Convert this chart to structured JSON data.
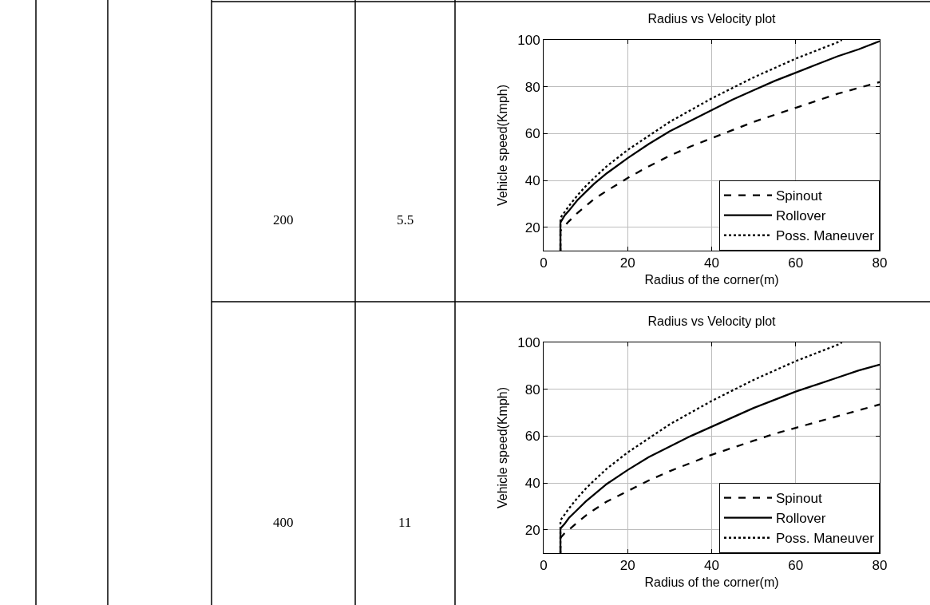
{
  "chart_data": [
    {
      "type": "line",
      "title": "Radius vs Velocity plot",
      "xlabel": "Radius of the corner(m)",
      "ylabel": "Vehicle speed(Kmph)",
      "annotations": [
        "200",
        "5.5"
      ],
      "xlim": [
        0,
        80
      ],
      "ylim": [
        10,
        100
      ],
      "xticks": [
        0,
        20,
        40,
        60,
        80
      ],
      "yticks": [
        20,
        40,
        60,
        80,
        100
      ],
      "grid": true,
      "legend": "bottom right",
      "marker": "none",
      "series": [
        {
          "name": "Spinout",
          "color": "#000000",
          "line_style": "dashed",
          "x": [
            4,
            4,
            5,
            6,
            8,
            10,
            12,
            15,
            20,
            25,
            30,
            35,
            40,
            45,
            50,
            55,
            60,
            65,
            70,
            75,
            80
          ],
          "values": [
            10,
            18.5,
            20.5,
            22.5,
            26,
            29,
            32,
            35.5,
            41,
            46,
            50.5,
            54.5,
            58,
            61.5,
            65,
            68,
            71,
            74,
            77,
            79.5,
            82
          ]
        },
        {
          "name": "Rollover",
          "color": "#000000",
          "line_style": "solid",
          "x": [
            4,
            4,
            5,
            6,
            8,
            10,
            12,
            15,
            20,
            25,
            30,
            35,
            40,
            45,
            50,
            55,
            60,
            65,
            70,
            75,
            80
          ],
          "values": [
            10,
            22,
            25,
            27,
            31.5,
            35,
            38.5,
            43,
            49.5,
            55.5,
            61,
            65.5,
            70,
            74.5,
            78.5,
            82.5,
            86,
            89.5,
            93,
            96,
            99.5
          ]
        },
        {
          "name": "Poss. Maneuver",
          "color": "#000000",
          "line_style": "dotted",
          "x": [
            4,
            4,
            5,
            6,
            8,
            10,
            12,
            15,
            20,
            25,
            30,
            35,
            40,
            45,
            50,
            55,
            60,
            65,
            70,
            71
          ],
          "values": [
            10,
            24,
            26.5,
            29,
            33.5,
            37.5,
            41,
            46,
            53,
            59,
            65,
            70,
            75,
            79.5,
            84,
            88,
            92,
            95.5,
            99,
            100
          ]
        }
      ]
    },
    {
      "type": "line",
      "title": "Radius vs Velocity plot",
      "xlabel": "Radius of the corner(m)",
      "ylabel": "Vehicle speed(Kmph)",
      "annotations": [
        "400",
        "11"
      ],
      "xlim": [
        0,
        80
      ],
      "ylim": [
        10,
        100
      ],
      "xticks": [
        0,
        20,
        40,
        60,
        80
      ],
      "yticks": [
        20,
        40,
        60,
        80,
        100
      ],
      "grid": true,
      "legend": "bottom right",
      "marker": "none",
      "series": [
        {
          "name": "Spinout",
          "color": "#000000",
          "line_style": "dashed",
          "x": [
            4,
            4,
            5,
            6,
            8,
            10,
            12,
            15,
            20,
            25,
            30,
            35,
            40,
            45,
            50,
            55,
            60,
            65,
            70,
            75,
            80
          ],
          "values": [
            10,
            16.5,
            18.5,
            20,
            23,
            26,
            28.5,
            32,
            36.5,
            41,
            45,
            48.5,
            52,
            55,
            58,
            61,
            63.5,
            66,
            68.5,
            71,
            73.5
          ]
        },
        {
          "name": "Rollover",
          "color": "#000000",
          "line_style": "solid",
          "x": [
            4,
            4,
            5,
            6,
            8,
            10,
            12,
            15,
            20,
            25,
            30,
            35,
            40,
            45,
            50,
            55,
            60,
            65,
            70,
            75,
            80
          ],
          "values": [
            10,
            20.5,
            22.5,
            25,
            28.5,
            32,
            35,
            39.5,
            45.5,
            51,
            55.5,
            60,
            64,
            68,
            72,
            75.5,
            79,
            82,
            85,
            88,
            90.5
          ]
        },
        {
          "name": "Poss. Maneuver",
          "color": "#000000",
          "line_style": "dotted",
          "x": [
            4,
            4,
            5,
            6,
            8,
            10,
            12,
            15,
            20,
            25,
            30,
            35,
            40,
            45,
            50,
            55,
            60,
            65,
            70,
            71
          ],
          "values": [
            10,
            24,
            26.5,
            29,
            33.5,
            37.5,
            41,
            46,
            53,
            59,
            65,
            70,
            75,
            79.5,
            84,
            88,
            92,
            95.5,
            99,
            100
          ]
        }
      ]
    }
  ]
}
